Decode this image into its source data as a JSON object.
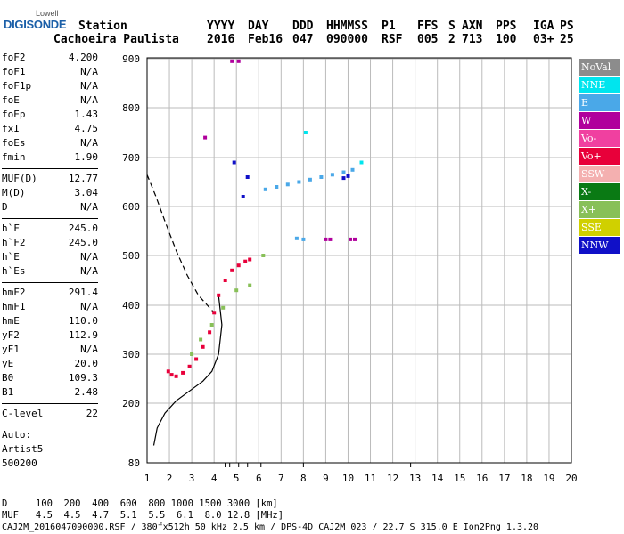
{
  "logo": {
    "line1": "Lowell",
    "line2": "DIGISONDE"
  },
  "header": {
    "line1": [
      "Station",
      "YYYY",
      "DAY",
      "DDD",
      "HHMMSS",
      "P1",
      "FFS",
      "S",
      "AXN",
      "PPS",
      "IGA",
      "PS"
    ],
    "line2": [
      "Cachoeira Paulista",
      "2016",
      "Feb16",
      "047",
      "090000",
      "RSF",
      "005",
      "2",
      "713",
      "100",
      "03+",
      "25"
    ]
  },
  "params_1": [
    {
      "k": "foF2",
      "v": "4.200"
    },
    {
      "k": "foF1",
      "v": "N/A"
    },
    {
      "k": "foF1p",
      "v": "N/A"
    },
    {
      "k": "foE",
      "v": "N/A"
    },
    {
      "k": "foEp",
      "v": "1.43"
    },
    {
      "k": "fxI",
      "v": "4.75"
    },
    {
      "k": "foEs",
      "v": "N/A"
    },
    {
      "k": "fmin",
      "v": "1.90"
    }
  ],
  "params_2": [
    {
      "k": "MUF(D)",
      "v": "12.77"
    },
    {
      "k": "M(D)",
      "v": "3.04"
    },
    {
      "k": "D",
      "v": "N/A"
    }
  ],
  "params_3": [
    {
      "k": "h`F",
      "v": "245.0"
    },
    {
      "k": "h`F2",
      "v": "245.0"
    },
    {
      "k": "h`E",
      "v": "N/A"
    },
    {
      "k": "h`Es",
      "v": "N/A"
    }
  ],
  "params_4": [
    {
      "k": "hmF2",
      "v": "291.4"
    },
    {
      "k": "hmF1",
      "v": "N/A"
    },
    {
      "k": "hmE",
      "v": "110.0"
    },
    {
      "k": "yF2",
      "v": "112.9"
    },
    {
      "k": "yF1",
      "v": "N/A"
    },
    {
      "k": "yE",
      "v": "20.0"
    },
    {
      "k": "B0",
      "v": "109.3"
    },
    {
      "k": "B1",
      "v": "2.48"
    }
  ],
  "params_5": [
    {
      "k": "C-level",
      "v": "22"
    }
  ],
  "params_6": [
    "Auto:",
    "Artist5",
    "500200"
  ],
  "legend": [
    {
      "label": "NoVal",
      "color": "#8c8c8c"
    },
    {
      "label": "NNE",
      "color": "#00e5ee"
    },
    {
      "label": "E",
      "color": "#4aa8e8"
    },
    {
      "label": "W",
      "color": "#b0009c"
    },
    {
      "label": "Vo-",
      "color": "#f040a0"
    },
    {
      "label": "Vo+",
      "color": "#e8003a"
    },
    {
      "label": "SSW",
      "color": "#f4b0b0"
    },
    {
      "label": "X-",
      "color": "#0a7a14"
    },
    {
      "label": "X+",
      "color": "#88c058"
    },
    {
      "label": "SSE",
      "color": "#d0d000"
    },
    {
      "label": "NNW",
      "color": "#1010c8"
    }
  ],
  "footer": {
    "line1": "D     100  200  400  600  800 1000 1500 3000 [km]",
    "line2": "MUF   4.5  4.5  4.7  5.1  5.5  6.1  8.0 12.8 [MHz]",
    "line3": "CAJ2M_2016047090000.RSF / 380fx512h 50 kHz 2.5 km / DPS-4D CAJ2M 023 / 22.7 S 315.0 E Ion2Png 1.3.20"
  },
  "chart_data": {
    "type": "scatter",
    "title": "",
    "xlabel": "",
    "ylabel": "",
    "xlim": [
      1,
      20
    ],
    "ylim": [
      80,
      900
    ],
    "x_ticks": [
      1,
      2,
      3,
      4,
      5,
      6,
      7,
      8,
      9,
      10,
      11,
      12,
      13,
      14,
      15,
      16,
      17,
      18,
      19,
      20
    ],
    "y_ticks": [
      80,
      200,
      300,
      400,
      500,
      600,
      700,
      800,
      900
    ],
    "grid": true,
    "series": [
      {
        "name": "Vo+",
        "color": "#e8003a",
        "points": [
          [
            1.95,
            265
          ],
          [
            2.1,
            258
          ],
          [
            2.3,
            255
          ],
          [
            2.6,
            262
          ],
          [
            2.9,
            275
          ],
          [
            3.2,
            290
          ],
          [
            3.5,
            315
          ],
          [
            3.8,
            345
          ],
          [
            4.0,
            385
          ],
          [
            4.2,
            420
          ],
          [
            4.5,
            450
          ],
          [
            4.8,
            470
          ],
          [
            5.1,
            480
          ],
          [
            5.4,
            488
          ],
          [
            5.6,
            492
          ]
        ]
      },
      {
        "name": "E",
        "color": "#4aa8e8",
        "points": [
          [
            6.3,
            635
          ],
          [
            6.8,
            640
          ],
          [
            7.3,
            645
          ],
          [
            7.8,
            650
          ],
          [
            8.3,
            655
          ],
          [
            8.8,
            660
          ],
          [
            9.3,
            665
          ],
          [
            9.8,
            670
          ],
          [
            10.2,
            675
          ],
          [
            7.7,
            535
          ],
          [
            8.0,
            533
          ]
        ]
      },
      {
        "name": "W",
        "color": "#b0009c",
        "points": [
          [
            9.0,
            533
          ],
          [
            9.2,
            533
          ],
          [
            10.1,
            533
          ],
          [
            10.3,
            533
          ],
          [
            3.6,
            740
          ],
          [
            4.8,
            895
          ],
          [
            5.1,
            895
          ]
        ]
      },
      {
        "name": "NNW",
        "color": "#1010c8",
        "points": [
          [
            9.8,
            658
          ],
          [
            10.0,
            662
          ],
          [
            5.5,
            660
          ],
          [
            5.3,
            620
          ],
          [
            4.9,
            690
          ]
        ]
      },
      {
        "name": "X+",
        "color": "#88c058",
        "points": [
          [
            3.0,
            300
          ],
          [
            3.4,
            330
          ],
          [
            3.9,
            360
          ],
          [
            4.4,
            395
          ],
          [
            5.0,
            430
          ],
          [
            5.6,
            440
          ],
          [
            6.2,
            500
          ]
        ]
      },
      {
        "name": "NNE",
        "color": "#00e5ee",
        "points": [
          [
            10.6,
            690
          ],
          [
            8.1,
            750
          ]
        ]
      }
    ],
    "virtual_height_trace_dashed": [
      [
        1.0,
        665
      ],
      [
        1.4,
        620
      ],
      [
        1.8,
        570
      ],
      [
        2.3,
        510
      ],
      [
        2.8,
        460
      ],
      [
        3.3,
        420
      ],
      [
        3.8,
        395
      ],
      [
        4.1,
        380
      ]
    ],
    "true_height_profile_solid": [
      [
        1.3,
        115
      ],
      [
        1.45,
        150
      ],
      [
        1.8,
        180
      ],
      [
        2.3,
        205
      ],
      [
        2.9,
        225
      ],
      [
        3.5,
        245
      ],
      [
        3.9,
        265
      ],
      [
        4.2,
        300
      ],
      [
        4.35,
        360
      ],
      [
        4.2,
        420
      ]
    ],
    "muf_bottom_ticks": [
      4.5,
      4.5,
      4.7,
      5.1,
      5.5,
      6.1,
      8.0,
      12.8
    ]
  }
}
